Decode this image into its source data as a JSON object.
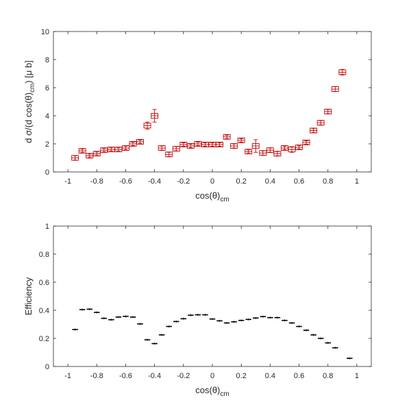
{
  "chart_data": [
    {
      "type": "scatter",
      "title": "",
      "xlabel": "cos(θ)",
      "xlabel_sub": "cm",
      "ylabel_parts": [
        "d σ/(d cos(θ)",
        "cm",
        ") [μ b]"
      ],
      "xlim": [
        -1.1,
        1.1
      ],
      "ylim": [
        0,
        10
      ],
      "xticks": [
        -1,
        -0.8,
        -0.6,
        -0.4,
        -0.2,
        0,
        0.2,
        0.4,
        0.6,
        0.8,
        1
      ],
      "xtick_labels": [
        "-1",
        "-0.8",
        "-0.6",
        "-0.4",
        "-0.2",
        "0",
        "0.2",
        "0.4",
        "0.6",
        "0.8",
        "1"
      ],
      "yticks": [
        0,
        2,
        4,
        6,
        8,
        10
      ],
      "ytick_labels": [
        "0",
        "2",
        "4",
        "6",
        "8",
        "10"
      ],
      "grid": false,
      "marker": "square",
      "color": "#c00000",
      "x_half_width": 0.025,
      "points": [
        {
          "x": -0.95,
          "y": 1.0,
          "err": 0.15
        },
        {
          "x": -0.9,
          "y": 1.5,
          "err": 0.12
        },
        {
          "x": -0.85,
          "y": 1.15,
          "err": 0.12
        },
        {
          "x": -0.8,
          "y": 1.3,
          "err": 0.12
        },
        {
          "x": -0.75,
          "y": 1.55,
          "err": 0.12
        },
        {
          "x": -0.7,
          "y": 1.6,
          "err": 0.12
        },
        {
          "x": -0.65,
          "y": 1.6,
          "err": 0.12
        },
        {
          "x": -0.6,
          "y": 1.7,
          "err": 0.12
        },
        {
          "x": -0.55,
          "y": 2.0,
          "err": 0.12
        },
        {
          "x": -0.5,
          "y": 2.15,
          "err": 0.12
        },
        {
          "x": -0.45,
          "y": 3.3,
          "err": 0.25
        },
        {
          "x": -0.4,
          "y": 4.0,
          "err": 0.45
        },
        {
          "x": -0.35,
          "y": 1.7,
          "err": 0.15
        },
        {
          "x": -0.3,
          "y": 1.25,
          "err": 0.15
        },
        {
          "x": -0.25,
          "y": 1.65,
          "err": 0.15
        },
        {
          "x": -0.2,
          "y": 1.95,
          "err": 0.12
        },
        {
          "x": -0.15,
          "y": 1.85,
          "err": 0.12
        },
        {
          "x": -0.1,
          "y": 2.0,
          "err": 0.12
        },
        {
          "x": -0.05,
          "y": 1.95,
          "err": 0.12
        },
        {
          "x": 0.0,
          "y": 1.95,
          "err": 0.12
        },
        {
          "x": 0.05,
          "y": 1.95,
          "err": 0.12
        },
        {
          "x": 0.1,
          "y": 2.5,
          "err": 0.12
        },
        {
          "x": 0.15,
          "y": 1.85,
          "err": 0.15
        },
        {
          "x": 0.2,
          "y": 2.25,
          "err": 0.12
        },
        {
          "x": 0.25,
          "y": 1.45,
          "err": 0.12
        },
        {
          "x": 0.3,
          "y": 1.85,
          "err": 0.45
        },
        {
          "x": 0.35,
          "y": 1.35,
          "err": 0.15
        },
        {
          "x": 0.4,
          "y": 1.55,
          "err": 0.15
        },
        {
          "x": 0.45,
          "y": 1.3,
          "err": 0.15
        },
        {
          "x": 0.5,
          "y": 1.7,
          "err": 0.12
        },
        {
          "x": 0.55,
          "y": 1.6,
          "err": 0.2
        },
        {
          "x": 0.6,
          "y": 1.75,
          "err": 0.12
        },
        {
          "x": 0.65,
          "y": 2.1,
          "err": 0.12
        },
        {
          "x": 0.7,
          "y": 2.95,
          "err": 0.15
        },
        {
          "x": 0.75,
          "y": 3.5,
          "err": 0.15
        },
        {
          "x": 0.8,
          "y": 4.3,
          "err": 0.15
        },
        {
          "x": 0.85,
          "y": 5.9,
          "err": 0.18
        },
        {
          "x": 0.9,
          "y": 7.1,
          "err": 0.2
        }
      ]
    },
    {
      "type": "scatter",
      "title": "",
      "xlabel": "cos(θ)",
      "xlabel_sub": "cm",
      "ylabel": "Efficiency",
      "xlim": [
        -1.1,
        1.1
      ],
      "ylim": [
        0,
        1
      ],
      "xticks": [
        -1,
        -0.8,
        -0.6,
        -0.4,
        -0.2,
        0,
        0.2,
        0.4,
        0.6,
        0.8,
        1
      ],
      "xtick_labels": [
        "-1",
        "-0.8",
        "-0.6",
        "-0.4",
        "-0.2",
        "0",
        "0.2",
        "0.4",
        "0.6",
        "0.8",
        "1"
      ],
      "yticks": [
        0,
        0.2,
        0.4,
        0.6,
        0.8,
        1
      ],
      "ytick_labels": [
        "0",
        "0.2",
        "0.4",
        "0.6",
        "0.8",
        "1"
      ],
      "grid": false,
      "color": "#000000",
      "x_half_width": 0.025,
      "points": [
        {
          "x": -0.95,
          "y": 0.263
        },
        {
          "x": -0.9,
          "y": 0.405
        },
        {
          "x": -0.85,
          "y": 0.408
        },
        {
          "x": -0.8,
          "y": 0.385
        },
        {
          "x": -0.75,
          "y": 0.343
        },
        {
          "x": -0.7,
          "y": 0.333
        },
        {
          "x": -0.65,
          "y": 0.352
        },
        {
          "x": -0.6,
          "y": 0.357
        },
        {
          "x": -0.55,
          "y": 0.352
        },
        {
          "x": -0.5,
          "y": 0.303
        },
        {
          "x": -0.45,
          "y": 0.19
        },
        {
          "x": -0.4,
          "y": 0.163
        },
        {
          "x": -0.35,
          "y": 0.225
        },
        {
          "x": -0.3,
          "y": 0.285
        },
        {
          "x": -0.25,
          "y": 0.32
        },
        {
          "x": -0.2,
          "y": 0.34
        },
        {
          "x": -0.15,
          "y": 0.365
        },
        {
          "x": -0.1,
          "y": 0.368
        },
        {
          "x": -0.05,
          "y": 0.368
        },
        {
          "x": 0.0,
          "y": 0.338
        },
        {
          "x": 0.05,
          "y": 0.325
        },
        {
          "x": 0.1,
          "y": 0.31
        },
        {
          "x": 0.15,
          "y": 0.318
        },
        {
          "x": 0.2,
          "y": 0.328
        },
        {
          "x": 0.25,
          "y": 0.335
        },
        {
          "x": 0.3,
          "y": 0.345
        },
        {
          "x": 0.35,
          "y": 0.355
        },
        {
          "x": 0.4,
          "y": 0.348
        },
        {
          "x": 0.45,
          "y": 0.348
        },
        {
          "x": 0.5,
          "y": 0.328
        },
        {
          "x": 0.55,
          "y": 0.31
        },
        {
          "x": 0.6,
          "y": 0.285
        },
        {
          "x": 0.65,
          "y": 0.258
        },
        {
          "x": 0.7,
          "y": 0.225
        },
        {
          "x": 0.75,
          "y": 0.2
        },
        {
          "x": 0.8,
          "y": 0.168
        },
        {
          "x": 0.85,
          "y": 0.133
        },
        {
          "x": 0.95,
          "y": 0.058
        }
      ]
    }
  ]
}
